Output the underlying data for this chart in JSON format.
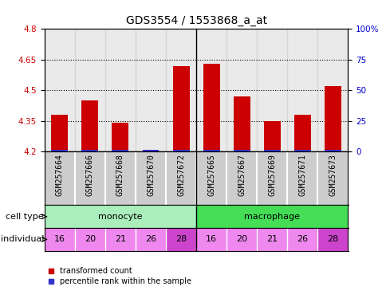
{
  "title": "GDS3554 / 1553868_a_at",
  "samples": [
    "GSM257664",
    "GSM257666",
    "GSM257668",
    "GSM257670",
    "GSM257672",
    "GSM257665",
    "GSM257667",
    "GSM257669",
    "GSM257671",
    "GSM257673"
  ],
  "transformed_count": [
    4.38,
    4.45,
    4.34,
    4.21,
    4.62,
    4.63,
    4.47,
    4.35,
    4.38,
    4.52
  ],
  "percentile_rank": [
    1,
    1,
    1,
    1,
    1,
    1,
    1,
    1,
    1,
    1
  ],
  "cell_types": [
    "monocyte",
    "monocyte",
    "monocyte",
    "monocyte",
    "monocyte",
    "macrophage",
    "macrophage",
    "macrophage",
    "macrophage",
    "macrophage"
  ],
  "individuals": [
    "16",
    "20",
    "21",
    "26",
    "28",
    "16",
    "20",
    "21",
    "26",
    "28"
  ],
  "bar_color_red": "#cc0000",
  "bar_color_blue": "#3333cc",
  "cell_type_color_monocyte": "#aaeebb",
  "cell_type_color_macrophage": "#44dd55",
  "individual_color_light": "#ee88ee",
  "individual_color_dark": "#cc44cc",
  "sample_bg_color": "#cccccc",
  "ymin": 4.2,
  "ymax": 4.8,
  "yticks": [
    4.2,
    4.35,
    4.5,
    4.65,
    4.8
  ],
  "ytick_labels": [
    "4.2",
    "4.35",
    "4.5",
    "4.65",
    "4.8"
  ],
  "right_yticks": [
    0,
    25,
    50,
    75,
    100
  ],
  "right_ytick_labels": [
    "0",
    "25",
    "50",
    "75",
    "100%"
  ],
  "hlines": [
    4.35,
    4.5,
    4.65
  ],
  "ytick_color": "#cc0000",
  "right_ytick_color": "#0000cc",
  "legend_red": "transformed count",
  "legend_blue": "percentile rank within the sample",
  "bar_width": 0.55,
  "title_fontsize": 10,
  "tick_fontsize": 7.5,
  "sample_fontsize": 7,
  "label_fontsize": 8,
  "annot_fontsize": 8
}
